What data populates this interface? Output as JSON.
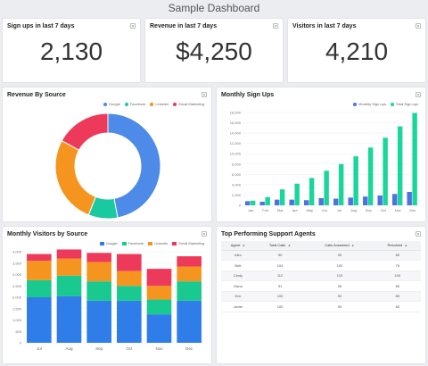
{
  "page": {
    "title": "Sample Dashboard"
  },
  "kpis": [
    {
      "title": "Sign ups in last 7 days",
      "value": "2,130"
    },
    {
      "title": "Revenue in last 7 days",
      "value": "$4,250"
    },
    {
      "title": "Visitors in last 7 days",
      "value": "4,210"
    }
  ],
  "revenue_by_source": {
    "title": "Revenue By Source",
    "legend": [
      "Google",
      "Facebook",
      "Linkedin",
      "Email Marketing"
    ],
    "colors": [
      "#4e8ae8",
      "#19c9a0",
      "#f5951f",
      "#ee3a5a"
    ]
  },
  "monthly_signups": {
    "title": "Monthly Sign Ups",
    "legend": [
      "Monthly Sign ups",
      "Total Sign ups"
    ],
    "colors": [
      "#4e73e0",
      "#19d69a"
    ],
    "y_ticks": [
      "0",
      "2,000",
      "4,000",
      "6,000",
      "8,000",
      "10,000",
      "12,000",
      "14,000",
      "16,000",
      "18,000"
    ]
  },
  "monthly_visitors": {
    "title": "Monthly Visitors by Source",
    "legend": [
      "Google",
      "Facebook",
      "LinkedIn",
      "Email Marketing"
    ],
    "colors": [
      "#2f7de8",
      "#19c98f",
      "#f5951f",
      "#ee3a5a"
    ],
    "y_ticks": [
      "0",
      "500",
      "1,000",
      "1,500",
      "2,000",
      "2,500",
      "3,000",
      "3,500",
      "4,000"
    ]
  },
  "support_agents": {
    "title": "Top Performing Support Agents",
    "columns": [
      "Agent",
      "Total Calls",
      "Calls Answered",
      "Resolved"
    ],
    "rows": [
      [
        "Alex",
        "90",
        "90",
        "80"
      ],
      [
        "Britt",
        "104",
        "100",
        "76"
      ],
      [
        "Cindy",
        "112",
        "110",
        "100"
      ],
      [
        "Dana",
        "91",
        "90",
        "80"
      ],
      [
        "Eric",
        "100",
        "90",
        "80"
      ],
      [
        "Javier",
        "100",
        "90",
        "80"
      ]
    ]
  },
  "chart_data": [
    {
      "type": "pie",
      "title": "Revenue By Source",
      "categories": [
        "Google",
        "Facebook",
        "Linkedin",
        "Email Marketing"
      ],
      "values": [
        47,
        9,
        27,
        17
      ]
    },
    {
      "type": "bar",
      "title": "Monthly Sign Ups",
      "categories": [
        "Jan",
        "Feb",
        "Mar",
        "Apr",
        "May",
        "Jun",
        "Jul",
        "Aug",
        "Sep",
        "Oct",
        "Nov",
        "Dec"
      ],
      "series": [
        {
          "name": "Monthly Sign ups",
          "values": [
            800,
            700,
            1100,
            1100,
            1000,
            1400,
            1300,
            1500,
            1700,
            1900,
            2200,
            2600
          ]
        },
        {
          "name": "Total Sign ups",
          "values": [
            900,
            1600,
            3100,
            4200,
            5300,
            6700,
            8000,
            9500,
            11200,
            13100,
            15300,
            17900
          ]
        }
      ],
      "ylim": [
        0,
        18000
      ]
    },
    {
      "type": "bar",
      "title": "Monthly Visitors by Source",
      "stacked": true,
      "categories": [
        "Jul",
        "Aug",
        "Sep",
        "Oct",
        "Nov",
        "Dec"
      ],
      "series": [
        {
          "name": "Google",
          "values": [
            2000,
            2050,
            1850,
            1850,
            1250,
            1850
          ]
        },
        {
          "name": "Facebook",
          "values": [
            750,
            900,
            850,
            650,
            650,
            850
          ]
        },
        {
          "name": "LinkedIn",
          "values": [
            850,
            750,
            850,
            650,
            600,
            650
          ]
        },
        {
          "name": "Email Marketing",
          "values": [
            300,
            400,
            400,
            750,
            750,
            450
          ]
        }
      ],
      "ylim": [
        0,
        4000
      ]
    }
  ]
}
